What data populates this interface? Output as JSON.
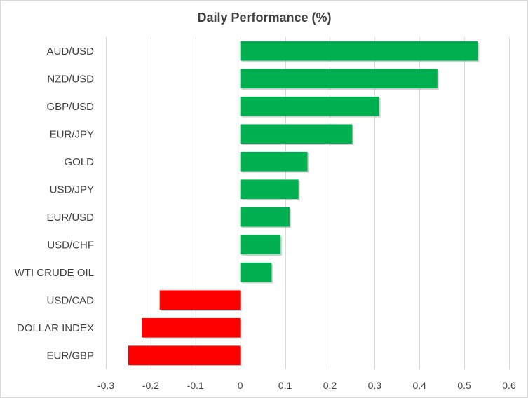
{
  "chart_data": {
    "type": "bar",
    "orientation": "horizontal",
    "title": "Daily Performance (%)",
    "xlabel": "",
    "ylabel": "",
    "categories": [
      "AUD/USD",
      "NZD/USD",
      "GBP/USD",
      "EUR/JPY",
      "GOLD",
      "USD/JPY",
      "EUR/USD",
      "USD/CHF",
      "WTI CRUDE OIL",
      "USD/CAD",
      "DOLLAR INDEX",
      "EUR/GBP"
    ],
    "values": [
      0.53,
      0.44,
      0.31,
      0.25,
      0.15,
      0.13,
      0.11,
      0.09,
      0.07,
      -0.18,
      -0.22,
      -0.25
    ],
    "xlim": [
      -0.3,
      0.6
    ],
    "ticks": [
      -0.3,
      -0.2,
      -0.1,
      0,
      0.1,
      0.2,
      0.3,
      0.4,
      0.5,
      0.6
    ],
    "tick_labels": [
      "-0.3",
      "-0.2",
      "-0.1",
      "0",
      "0.1",
      "0.2",
      "0.3",
      "0.4",
      "0.5",
      "0.6"
    ],
    "grid": true,
    "legend": "none",
    "colors": {
      "positive": "#00b050",
      "negative": "#ff0000",
      "grid": "#d9d9d9",
      "text": "#404040"
    }
  }
}
